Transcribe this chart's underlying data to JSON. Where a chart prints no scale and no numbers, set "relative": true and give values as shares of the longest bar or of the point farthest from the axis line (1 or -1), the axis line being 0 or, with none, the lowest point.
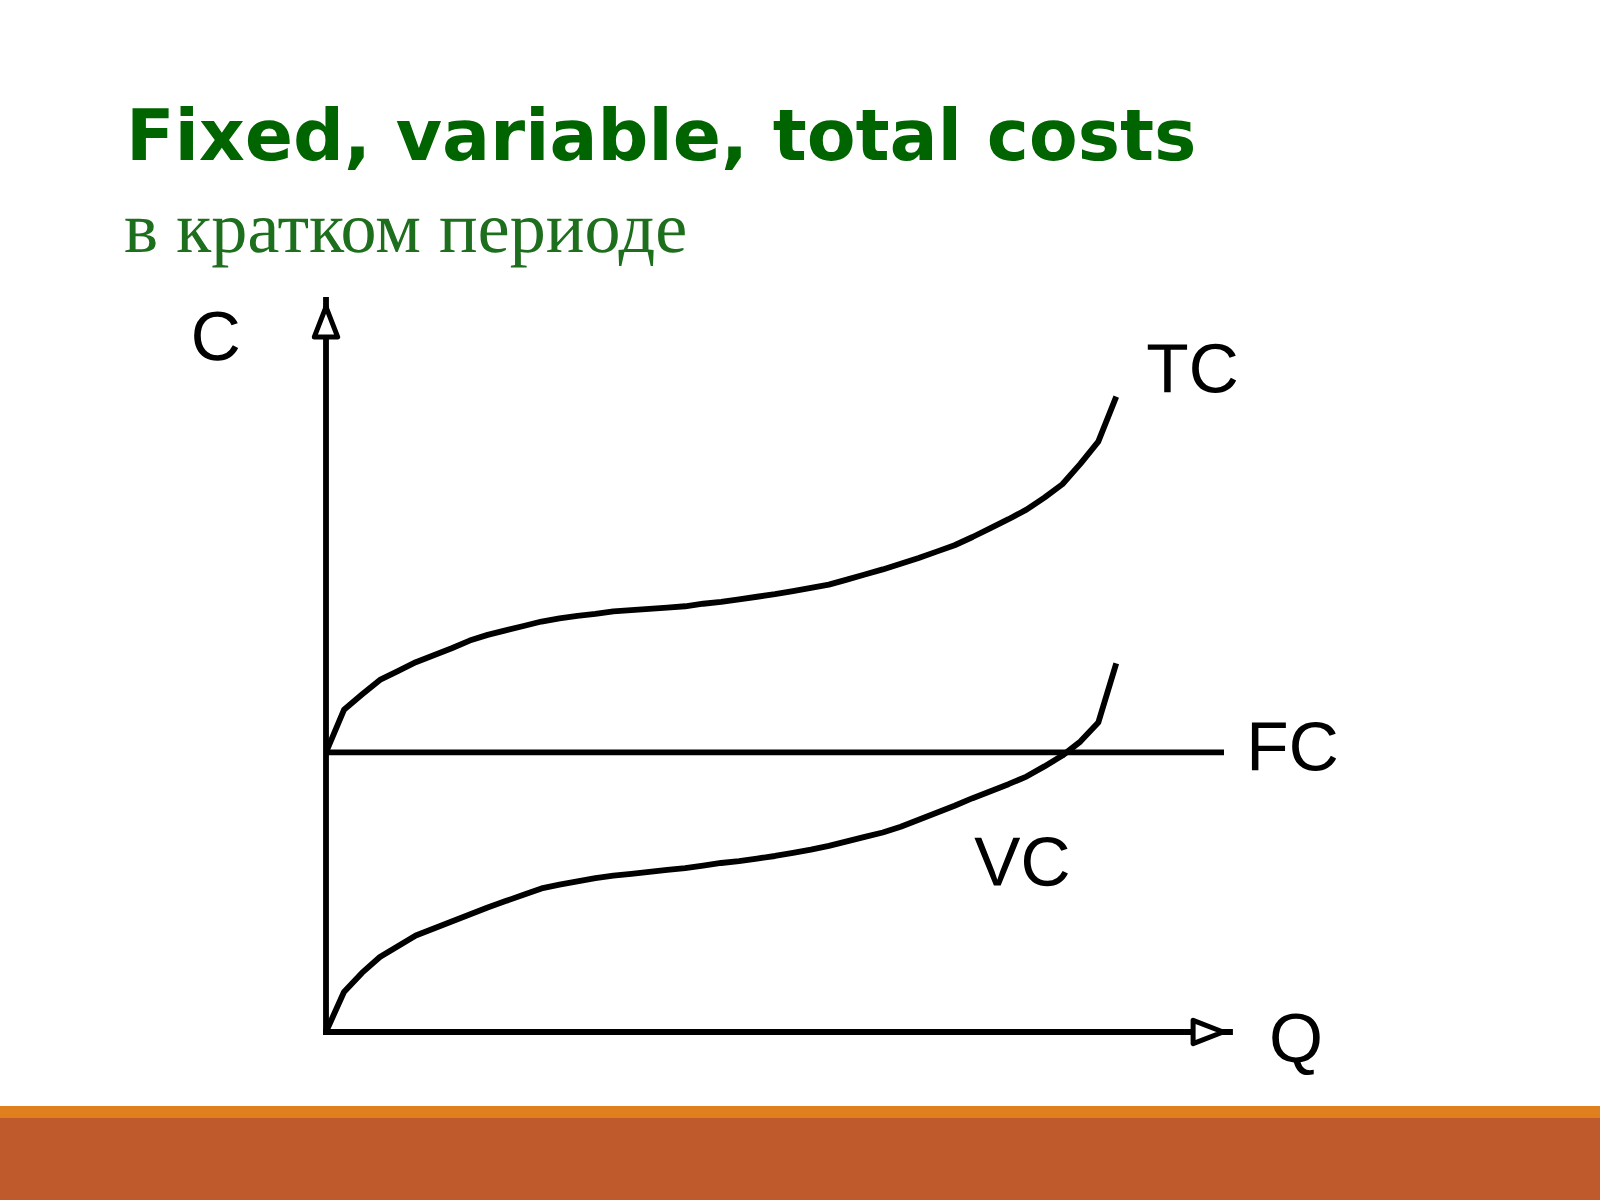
{
  "chart_data": {
    "type": "line",
    "title": "Fixed, variable, total costs",
    "subtitle": "в кратком периоде",
    "xlabel": "Q",
    "ylabel": "C",
    "relative": true,
    "tick_labels": false,
    "categories": [
      null,
      null,
      null,
      null,
      null,
      null,
      null,
      null,
      null,
      null,
      null,
      null,
      null,
      null,
      null,
      null,
      null,
      null,
      null,
      null,
      null,
      null,
      null,
      null,
      null,
      null,
      null,
      null,
      null,
      null,
      null,
      null,
      null,
      null,
      null,
      null,
      null,
      null,
      null,
      null,
      null,
      null,
      null,
      null,
      null,
      null,
      null,
      null,
      null,
      null,
      null
    ],
    "series": [
      {
        "name": "TC",
        "color": "#000000",
        "values": [
          0.44,
          0.507,
          0.531,
          0.554,
          0.568,
          0.582,
          0.593,
          0.604,
          0.616,
          0.625,
          0.632,
          0.639,
          0.646,
          0.651,
          0.655,
          0.658,
          0.662,
          0.664,
          0.666,
          0.668,
          0.67,
          0.674,
          0.677,
          0.681,
          0.685,
          0.689,
          0.694,
          0.699,
          0.704,
          0.712,
          0.72,
          0.728,
          0.737,
          0.746,
          0.756,
          0.766,
          0.779,
          0.793,
          0.807,
          0.822,
          0.841,
          0.862,
          0.894,
          0.929,
          1.0,
          null,
          null,
          null,
          null,
          null,
          null
        ]
      },
      {
        "name": "FC",
        "color": "#000000",
        "values": [
          0.44,
          0.44,
          0.44,
          0.44,
          0.44,
          0.44,
          0.44,
          0.44,
          0.44,
          0.44,
          0.44,
          0.44,
          0.44,
          0.44,
          0.44,
          0.44,
          0.44,
          0.44,
          0.44,
          0.44,
          0.44,
          0.44,
          0.44,
          0.44,
          0.44,
          0.44,
          0.44,
          0.44,
          0.44,
          0.44,
          0.44,
          0.44,
          0.44,
          0.44,
          0.44,
          0.44,
          0.44,
          0.44,
          0.44,
          0.44,
          0.44,
          0.44,
          0.44,
          0.44,
          0.44,
          0.44,
          0.44,
          0.44,
          0.44,
          0.44,
          0.44
        ]
      },
      {
        "name": "VC",
        "color": "#000000",
        "values": [
          0,
          0.063,
          0.093,
          0.118,
          0.135,
          0.152,
          0.163,
          0.174,
          0.185,
          0.196,
          0.206,
          0.216,
          0.226,
          0.232,
          0.237,
          0.242,
          0.246,
          0.249,
          0.252,
          0.255,
          0.258,
          0.262,
          0.266,
          0.269,
          0.273,
          0.277,
          0.282,
          0.287,
          0.293,
          0.3,
          0.307,
          0.314,
          0.323,
          0.334,
          0.345,
          0.356,
          0.368,
          0.379,
          0.39,
          0.402,
          0.418,
          0.435,
          0.457,
          0.487,
          0.58,
          null,
          null,
          null,
          null,
          null,
          null
        ]
      }
    ]
  }
}
